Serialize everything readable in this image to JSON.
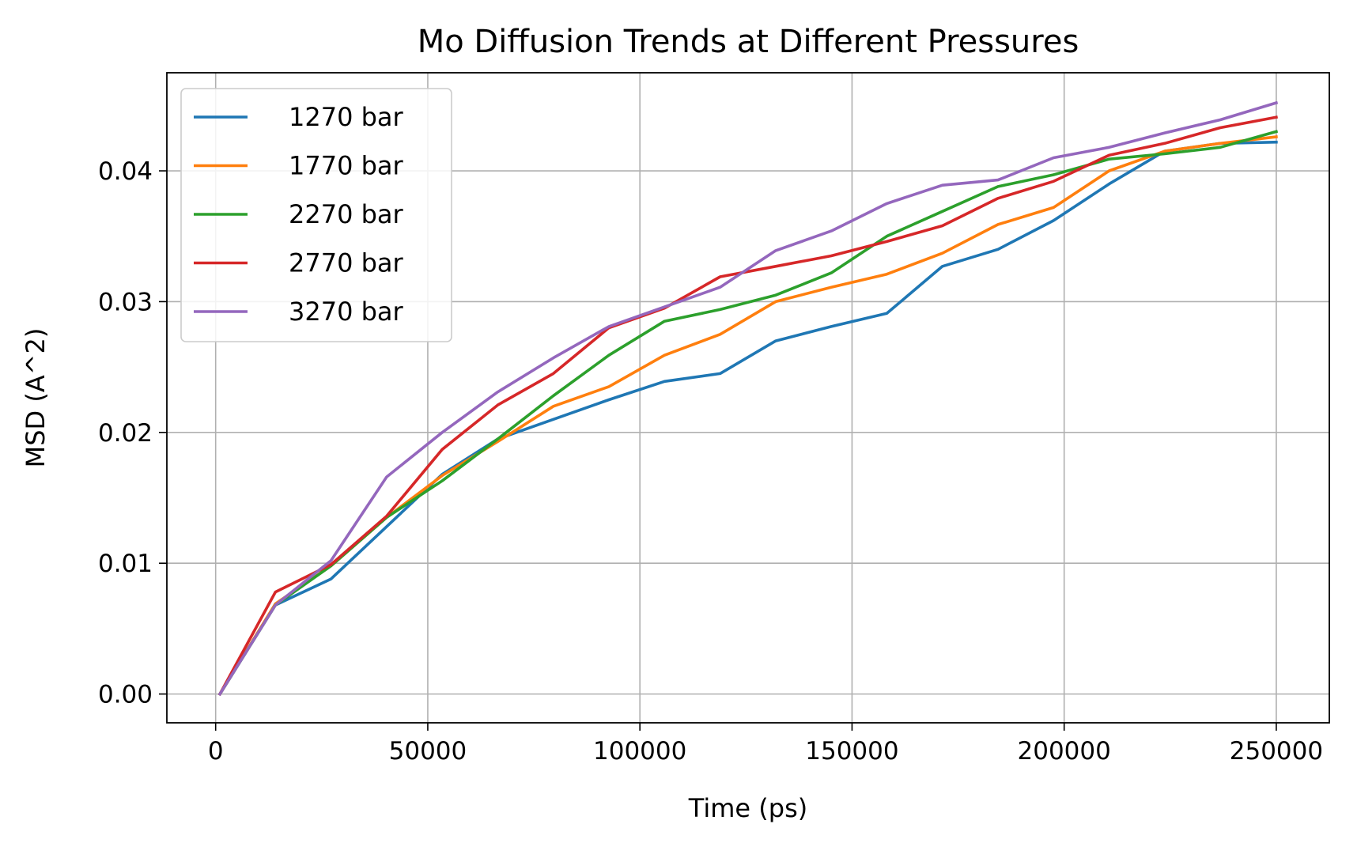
{
  "chart_data": {
    "type": "line",
    "title": "Mo Diffusion Trends at Different Pressures",
    "xlabel": "Time (ps)",
    "ylabel": "MSD (A^2)",
    "xlim": [
      -11500,
      262500
    ],
    "ylim": [
      -0.0022,
      0.0475
    ],
    "xticks": [
      0,
      50000,
      100000,
      150000,
      200000,
      250000
    ],
    "xtick_labels": [
      "0",
      "50000",
      "100000",
      "150000",
      "200000",
      "250000"
    ],
    "yticks": [
      0.0,
      0.01,
      0.02,
      0.03,
      0.04
    ],
    "ytick_labels": [
      "0.00",
      "0.01",
      "0.02",
      "0.03",
      "0.04"
    ],
    "grid": true,
    "legend_position": "upper-left",
    "x": [
      1000,
      14100,
      27200,
      40300,
      53400,
      66500,
      79600,
      92700,
      105800,
      118900,
      132000,
      145100,
      158200,
      171300,
      184400,
      197500,
      210600,
      223700,
      236800,
      250000
    ],
    "series": [
      {
        "name": "1270 bar",
        "color": "#1f77b4",
        "values": [
          0.0,
          0.0068,
          0.0088,
          0.0128,
          0.0168,
          0.0195,
          0.021,
          0.0225,
          0.0239,
          0.0245,
          0.027,
          0.0281,
          0.0291,
          0.0327,
          0.034,
          0.0362,
          0.039,
          0.0415,
          0.0421,
          0.0422
        ]
      },
      {
        "name": "1770 bar",
        "color": "#ff7f0e",
        "values": [
          0.0,
          0.0069,
          0.0098,
          0.0135,
          0.0167,
          0.0193,
          0.022,
          0.0235,
          0.0259,
          0.0275,
          0.03,
          0.0311,
          0.0321,
          0.0337,
          0.0359,
          0.0372,
          0.04,
          0.0415,
          0.0421,
          0.0426
        ]
      },
      {
        "name": "2270 bar",
        "color": "#2ca02c",
        "values": [
          0.0,
          0.0068,
          0.0098,
          0.0135,
          0.0163,
          0.0195,
          0.0228,
          0.0259,
          0.0285,
          0.0294,
          0.0305,
          0.0322,
          0.035,
          0.0369,
          0.0388,
          0.0397,
          0.0409,
          0.0413,
          0.0418,
          0.043
        ]
      },
      {
        "name": "2770 bar",
        "color": "#d62728",
        "values": [
          0.0,
          0.0078,
          0.0099,
          0.0136,
          0.0187,
          0.0221,
          0.0245,
          0.028,
          0.0295,
          0.0319,
          0.0327,
          0.0335,
          0.0346,
          0.0358,
          0.0379,
          0.0392,
          0.0412,
          0.0421,
          0.0433,
          0.0441
        ]
      },
      {
        "name": "3270 bar",
        "color": "#9467bd",
        "values": [
          0.0,
          0.0068,
          0.0102,
          0.0166,
          0.02,
          0.0231,
          0.0257,
          0.0281,
          0.0296,
          0.0311,
          0.0339,
          0.0354,
          0.0375,
          0.0389,
          0.0393,
          0.041,
          0.0418,
          0.0429,
          0.0439,
          0.0452
        ]
      }
    ]
  }
}
